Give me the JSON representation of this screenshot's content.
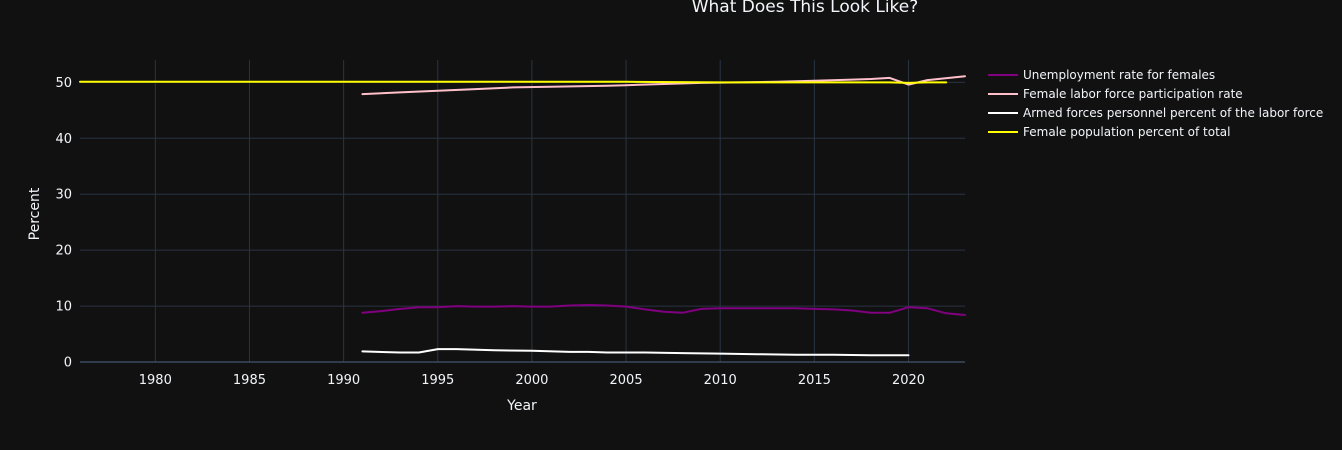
{
  "chart_data": {
    "type": "line",
    "title": "What Does This Look Like?",
    "xlabel": "Year",
    "ylabel": "Percent",
    "xlim": [
      1976,
      2023
    ],
    "ylim": [
      0,
      54
    ],
    "xticks": [
      1980,
      1985,
      1990,
      1995,
      2000,
      2005,
      2010,
      2015,
      2020
    ],
    "yticks": [
      0,
      10,
      20,
      30,
      40,
      50
    ],
    "grid": true,
    "legend_position": "right",
    "series": [
      {
        "name": "Unemployment rate for females",
        "color": "#800080",
        "x": [
          1991,
          1992,
          1993,
          1994,
          1995,
          1996,
          1997,
          1998,
          1999,
          2000,
          2001,
          2002,
          2003,
          2004,
          2005,
          2006,
          2007,
          2008,
          2009,
          2010,
          2011,
          2012,
          2013,
          2014,
          2015,
          2016,
          2017,
          2018,
          2019,
          2020,
          2021,
          2022,
          2023
        ],
        "y": [
          8.8,
          9.1,
          9.5,
          9.8,
          9.8,
          10.0,
          9.9,
          9.9,
          10.0,
          9.9,
          9.9,
          10.1,
          10.2,
          10.1,
          9.9,
          9.4,
          9.0,
          8.8,
          9.5,
          9.6,
          9.6,
          9.6,
          9.6,
          9.6,
          9.5,
          9.4,
          9.2,
          8.8,
          8.8,
          9.8,
          9.6,
          8.7,
          8.4
        ]
      },
      {
        "name": "Female labor force participation rate",
        "color": "#ffc0cb",
        "x": [
          1991,
          1993,
          1995,
          1997,
          1999,
          2001,
          2004,
          2005,
          2007,
          2009,
          2011,
          2013,
          2015,
          2017,
          2018,
          2019,
          2020,
          2021,
          2023
        ],
        "y": [
          47.9,
          48.2,
          48.5,
          48.8,
          49.1,
          49.2,
          49.4,
          49.5,
          49.7,
          49.9,
          50.0,
          50.1,
          50.3,
          50.5,
          50.6,
          50.8,
          49.6,
          50.4,
          51.1
        ]
      },
      {
        "name": "Armed forces personnel percent of the labor force",
        "color": "#ffffff",
        "x": [
          1991,
          1993,
          1994,
          1995,
          1996,
          1998,
          2000,
          2002,
          2003,
          2004,
          2006,
          2008,
          2010,
          2012,
          2014,
          2016,
          2018,
          2020
        ],
        "y": [
          1.9,
          1.7,
          1.7,
          2.3,
          2.3,
          2.1,
          2.0,
          1.8,
          1.8,
          1.7,
          1.7,
          1.6,
          1.5,
          1.4,
          1.3,
          1.3,
          1.2,
          1.2
        ]
      },
      {
        "name": "Female population percent of total",
        "color": "#ffff00",
        "x": [
          1976,
          1980,
          1985,
          1990,
          1995,
          2000,
          2005,
          2010,
          2015,
          2019,
          2020,
          2021,
          2022
        ],
        "y": [
          50.1,
          50.1,
          50.1,
          50.1,
          50.1,
          50.1,
          50.1,
          50.0,
          50.0,
          50.0,
          49.9,
          50.0,
          50.0
        ]
      }
    ]
  }
}
